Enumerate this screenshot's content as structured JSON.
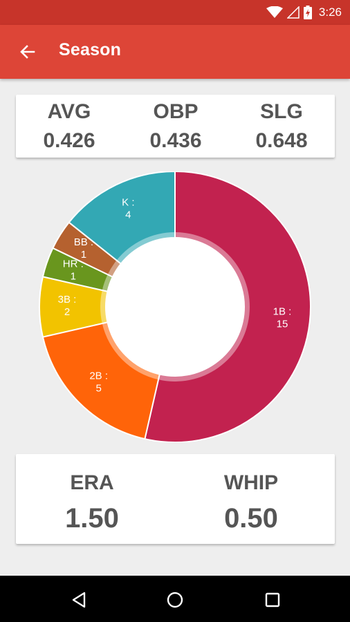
{
  "status_bar": {
    "time": "3:26"
  },
  "app_bar": {
    "title": "Season"
  },
  "batting": [
    {
      "label": "AVG",
      "value": "0.426"
    },
    {
      "label": "OBP",
      "value": "0.436"
    },
    {
      "label": "SLG",
      "value": "0.648"
    }
  ],
  "pitching": [
    {
      "label": "ERA",
      "value": "1.50"
    },
    {
      "label": "WHIP",
      "value": "0.50"
    }
  ],
  "chart_data": {
    "type": "pie",
    "style": "donut",
    "slices": [
      {
        "label": "1B :",
        "value": 15,
        "display": "15",
        "color": "#c2224f"
      },
      {
        "label": "2B :",
        "value": 5,
        "display": "5",
        "color": "#ff6409"
      },
      {
        "label": "3B :",
        "value": 2,
        "display": "2",
        "color": "#f2c300"
      },
      {
        "label": "HR :",
        "value": 1,
        "display": "1",
        "color": "#69961e"
      },
      {
        "label": "BB :",
        "value": 1,
        "display": "1",
        "color": "#b5612f"
      },
      {
        "label": "K :",
        "value": 4,
        "display": "4",
        "color": "#33a8b4"
      }
    ]
  },
  "colors": {
    "status_bar": "#c7342a",
    "app_bar": "#dd4537",
    "stat_text": "#555555"
  }
}
